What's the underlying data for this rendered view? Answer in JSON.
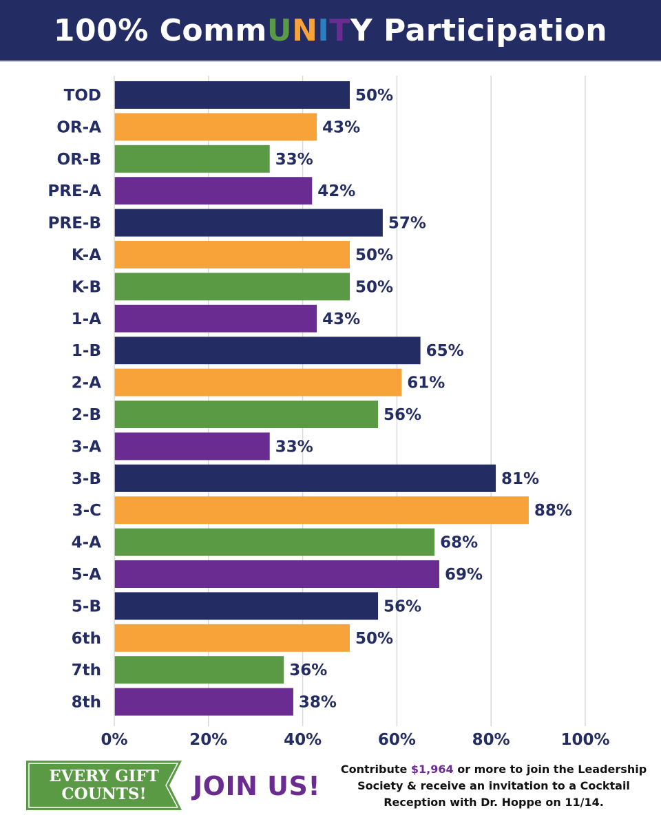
{
  "header": {
    "title_parts": [
      "100% Comm",
      "U",
      "N",
      "I",
      "T",
      "Y Participation"
    ]
  },
  "colors": {
    "navy": "#232c63",
    "orange": "#f7a33a",
    "green": "#5b9a45",
    "purple": "#6b2c91",
    "blue": "#2b7ec0",
    "grid": "#d9d9d9",
    "title_letter_colors": [
      "#ffffff",
      "#5b9a45",
      "#f7a33a",
      "#2b7ec0",
      "#6b2c91",
      "#ffffff"
    ]
  },
  "chart_data": {
    "type": "bar",
    "orientation": "horizontal",
    "title": "100% CommUNITY Participation",
    "xlabel": "",
    "ylabel": "",
    "xlim": [
      0,
      100
    ],
    "grid": true,
    "categories": [
      "TOD",
      "OR-A",
      "OR-B",
      "PRE-A",
      "PRE-B",
      "K-A",
      "K-B",
      "1-A",
      "1-B",
      "2-A",
      "2-B",
      "3-A",
      "3-B",
      "3-C",
      "4-A",
      "5-A",
      "5-B",
      "6th",
      "7th",
      "8th"
    ],
    "values": [
      50,
      43,
      33,
      42,
      57,
      50,
      50,
      43,
      65,
      61,
      56,
      33,
      81,
      88,
      68,
      69,
      56,
      50,
      36,
      38
    ],
    "value_labels": [
      "50%",
      "43%",
      "33%",
      "42%",
      "57%",
      "50%",
      "50%",
      "43%",
      "65%",
      "61%",
      "56%",
      "33%",
      "81%",
      "88%",
      "68%",
      "69%",
      "56%",
      "50%",
      "36%",
      "38%"
    ],
    "bar_colors": [
      "navy",
      "orange",
      "green",
      "purple",
      "navy",
      "orange",
      "green",
      "purple",
      "navy",
      "orange",
      "green",
      "purple",
      "navy",
      "orange",
      "green",
      "purple",
      "navy",
      "orange",
      "green",
      "purple"
    ],
    "x_ticks": [
      0,
      20,
      40,
      60,
      80,
      100
    ],
    "x_tick_labels": [
      "0%",
      "20%",
      "40%",
      "60%",
      "80%",
      "100%"
    ]
  },
  "footer": {
    "banner_line1": "EVERY GIFT",
    "banner_line2": "COUNTS!",
    "join_label": "JOIN US!",
    "note_pre": "Contribute ",
    "note_amount": "$1,964",
    "note_post": " or more to join the Leadership Society & receive an invitation to a Cocktail Reception with Dr. Hoppe on 11/14."
  }
}
